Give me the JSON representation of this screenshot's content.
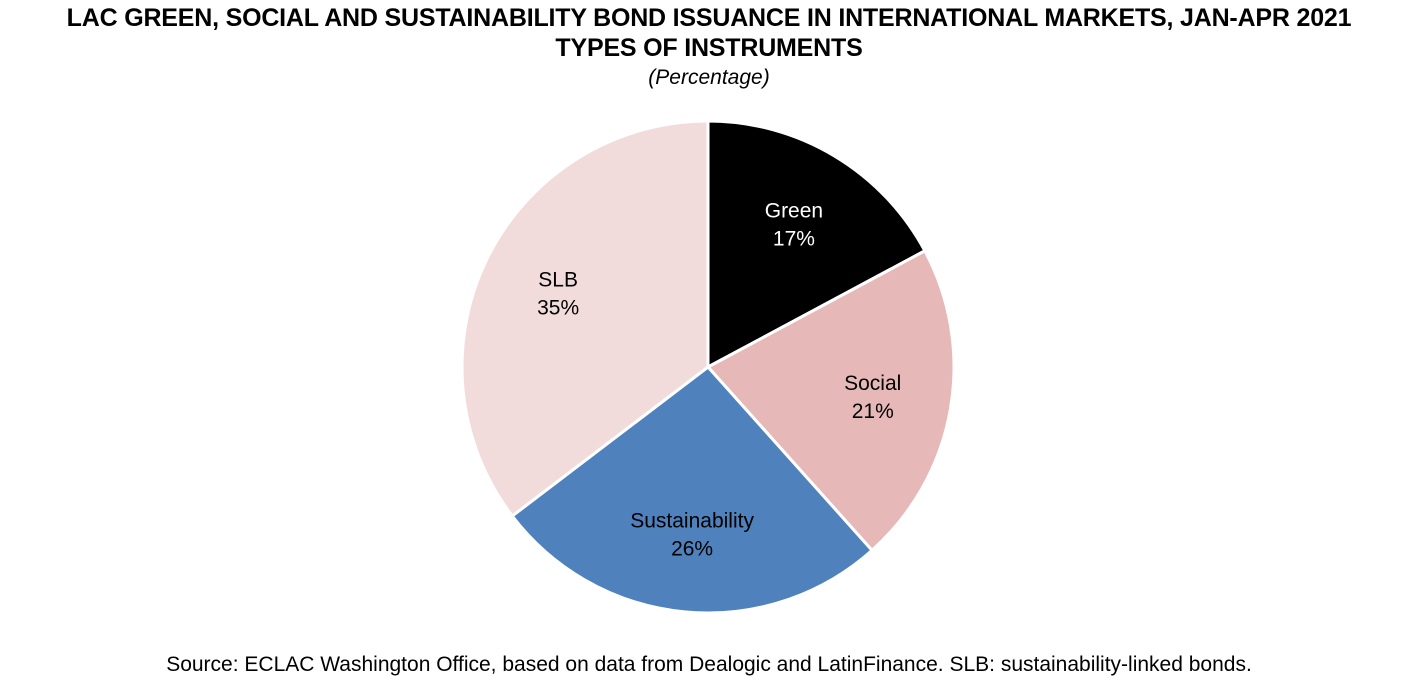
{
  "chart_data": {
    "type": "pie",
    "title_line_1": "LAC GREEN, SOCIAL AND SUSTAINABILITY BOND ISSUANCE IN INTERNATIONAL MARKETS, JAN-APR 2021",
    "title_line_2": "TYPES OF INSTRUMENTS",
    "subtitle": "(Percentage)",
    "categories": [
      "Green",
      "Social",
      "Sustainability",
      "SLB"
    ],
    "values": [
      17,
      21,
      26,
      35
    ],
    "value_labels": [
      "17%",
      "21%",
      "26%",
      "35%"
    ],
    "colors": [
      "#000000",
      "#e6b9b8",
      "#4f81bd",
      "#f2dcdb"
    ],
    "label_colors": [
      "#ffffff",
      "#000000",
      "#000000",
      "#000000"
    ],
    "source": "Source: ECLAC Washington Office, based on data from Dealogic and LatinFinance. SLB: sustainability-linked bonds."
  }
}
